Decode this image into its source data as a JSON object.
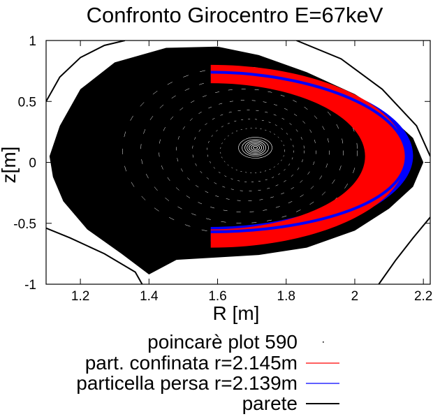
{
  "chart_data": {
    "type": "scatter",
    "title": "Confronto Girocentro E=67keV",
    "xlabel": "R [m]",
    "ylabel": "z[m]",
    "xlim": [
      1.1,
      2.22
    ],
    "ylim": [
      -1,
      1
    ],
    "xticks": [
      1.2,
      1.4,
      1.6,
      1.8,
      2,
      2.2
    ],
    "xtick_labels": [
      "1.2",
      "1.4",
      "1.6",
      "1.8",
      "2",
      "2.2"
    ],
    "yticks": [
      1,
      0.5,
      0,
      -0.5,
      -1
    ],
    "ytick_labels": [
      "1",
      "0.5",
      "0",
      "-0.5",
      "-1"
    ],
    "grid": false,
    "legend_position": "bottom",
    "series": [
      {
        "name": "poincarè plot 590",
        "kind": "points",
        "color": "#000000",
        "magnetic_axis": [
          1.71,
          0.12
        ],
        "boundary": {
          "x": [
            1.11,
            1.14,
            1.2,
            1.3,
            1.45,
            1.6,
            1.72,
            1.86,
            2.0,
            2.1,
            2.17,
            2.2,
            2.17,
            2.1,
            2.0,
            1.86,
            1.72,
            1.6,
            1.48,
            1.4,
            1.32,
            1.22,
            1.15,
            1.12,
            1.11
          ],
          "y": [
            0.05,
            0.3,
            0.6,
            0.82,
            0.94,
            0.95,
            0.88,
            0.74,
            0.56,
            0.38,
            0.2,
            0.0,
            -0.2,
            -0.38,
            -0.56,
            -0.7,
            -0.76,
            -0.78,
            -0.8,
            -0.92,
            -0.75,
            -0.55,
            -0.32,
            -0.12,
            0.05
          ]
        }
      },
      {
        "name": "part. confinata r=2.145m",
        "kind": "orbit",
        "color": "#ff0000",
        "outer": {
          "R0": 1.58,
          "R_tip": 2.15,
          "z_top": 0.8,
          "z_bot": -0.7
        },
        "inner": {
          "R0": 1.58,
          "R_tip": 2.03,
          "z_top": 0.65,
          "z_bot": -0.55
        }
      },
      {
        "name": "particella persa r=2.139m",
        "kind": "orbit",
        "color": "#0000ff",
        "outer": {
          "R0": 1.58,
          "R_tip": 2.17,
          "z_top": 0.76,
          "z_bot": -0.65
        },
        "inner": {
          "R0": 1.58,
          "R_tip": 2.08,
          "z_top": 0.7,
          "z_bot": -0.53
        }
      },
      {
        "name": "parete",
        "kind": "line",
        "color": "#000000",
        "segments": [
          {
            "x": [
              1.1,
              1.14,
              1.2,
              1.27,
              1.33
            ],
            "y": [
              0.5,
              0.7,
              0.86,
              0.96,
              1.0
            ]
          },
          {
            "x": [
              1.83,
              1.96,
              2.08,
              2.18,
              2.22
            ],
            "y": [
              1.0,
              0.85,
              0.6,
              0.3,
              0.05
            ]
          },
          {
            "x": [
              1.1,
              1.17,
              1.27,
              1.36,
              1.38
            ],
            "y": [
              -0.54,
              -0.62,
              -0.75,
              -0.9,
              -1.0
            ]
          },
          {
            "x": [
              2.22,
              2.17,
              2.12,
              2.07
            ],
            "y": [
              -0.45,
              -0.62,
              -0.8,
              -1.0
            ]
          }
        ]
      }
    ]
  }
}
